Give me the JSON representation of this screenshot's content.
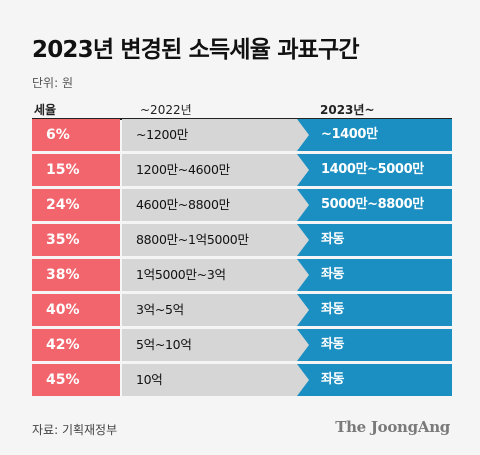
{
  "title": "2023년 변경된 소득세율 과표구간",
  "unit": "단위: 원",
  "headers": {
    "rate": "세율",
    "old": "~2022년",
    "new": "2023년~"
  },
  "colors": {
    "rate": "#f2656d",
    "old": "#d6d6d6",
    "new": "#1b8fc1"
  },
  "chart_data": {
    "type": "table",
    "columns": [
      "세율",
      "~2022년",
      "2023년~"
    ],
    "rows": [
      [
        "6%",
        "~1200만",
        "~1400만"
      ],
      [
        "15%",
        "1200만~4600만",
        "1400만~5000만"
      ],
      [
        "24%",
        "4600만~8800만",
        "5000만~8800만"
      ],
      [
        "35%",
        "8800만~1억5000만",
        "좌동"
      ],
      [
        "38%",
        "1억5000만~3억",
        "좌동"
      ],
      [
        "40%",
        "3억~5억",
        "좌동"
      ],
      [
        "42%",
        "5억~10억",
        "좌동"
      ],
      [
        "45%",
        "10억",
        "좌동"
      ]
    ]
  },
  "source": "자료: 기획재정부",
  "brand": "The JoongAng"
}
